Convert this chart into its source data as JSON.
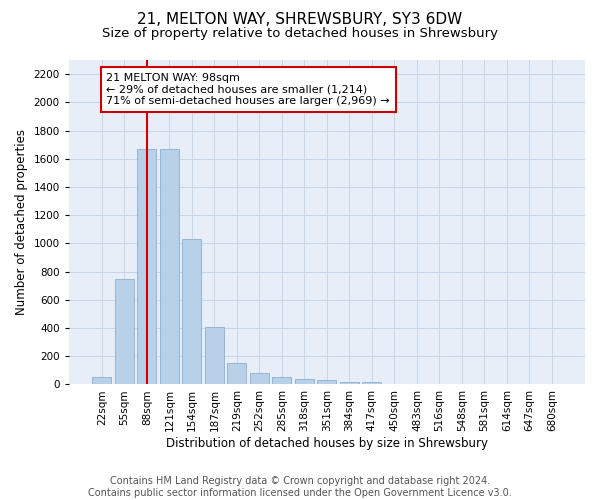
{
  "title": "21, MELTON WAY, SHREWSBURY, SY3 6DW",
  "subtitle": "Size of property relative to detached houses in Shrewsbury",
  "xlabel": "Distribution of detached houses by size in Shrewsbury",
  "ylabel": "Number of detached properties",
  "footer_line1": "Contains HM Land Registry data © Crown copyright and database right 2024.",
  "footer_line2": "Contains public sector information licensed under the Open Government Licence v3.0.",
  "bar_labels": [
    "22sqm",
    "55sqm",
    "88sqm",
    "121sqm",
    "154sqm",
    "187sqm",
    "219sqm",
    "252sqm",
    "285sqm",
    "318sqm",
    "351sqm",
    "384sqm",
    "417sqm",
    "450sqm",
    "483sqm",
    "516sqm",
    "548sqm",
    "581sqm",
    "614sqm",
    "647sqm",
    "680sqm"
  ],
  "bar_values": [
    55,
    745,
    1670,
    1670,
    1030,
    405,
    150,
    80,
    50,
    40,
    30,
    20,
    15,
    0,
    0,
    0,
    0,
    0,
    0,
    0,
    0
  ],
  "bar_color": "#b8d0e8",
  "bar_edge_color": "#8ab0d0",
  "vline_x_index": 2,
  "vline_color": "#cc0000",
  "annotation_text": "21 MELTON WAY: 98sqm\n← 29% of detached houses are smaller (1,214)\n71% of semi-detached houses are larger (2,969) →",
  "annotation_box_color": "#ffffff",
  "annotation_box_edge_color": "#cc0000",
  "ylim": [
    0,
    2300
  ],
  "yticks": [
    0,
    200,
    400,
    600,
    800,
    1000,
    1200,
    1400,
    1600,
    1800,
    2000,
    2200
  ],
  "background_color": "#ffffff",
  "plot_bg_color": "#e8eef8",
  "grid_color": "#c8d4e8",
  "title_fontsize": 11,
  "subtitle_fontsize": 9.5,
  "axis_label_fontsize": 8.5,
  "tick_fontsize": 7.5,
  "footer_fontsize": 7,
  "annotation_fontsize": 8
}
